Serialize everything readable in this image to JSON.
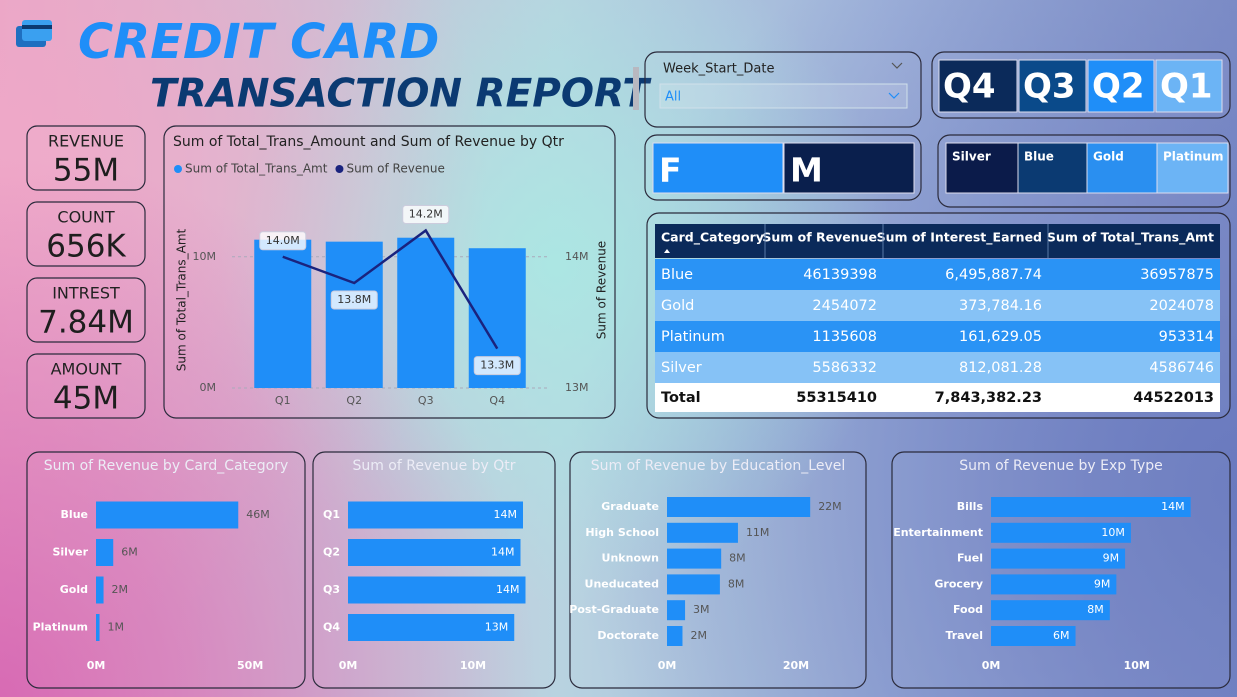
{
  "header": {
    "title": "CREDIT CARD",
    "subtitle": "TRANSACTION REPORT"
  },
  "kpis": [
    {
      "label": "REVENUE",
      "value": "55M"
    },
    {
      "label": "COUNT",
      "value": "656K"
    },
    {
      "label": "INTREST",
      "value": "7.84M"
    },
    {
      "label": "AMOUNT",
      "value": "45M"
    }
  ],
  "filters": {
    "week": {
      "label": "Week_Start_Date",
      "value": "All"
    },
    "quarters": [
      "Q4",
      "Q3",
      "Q2",
      "Q1"
    ],
    "gender": [
      "F",
      "M"
    ],
    "card_category": [
      "Silver",
      "Blue",
      "Gold",
      "Platinum"
    ]
  },
  "table": {
    "columns": [
      "Card_Category",
      "Sum of Revenue",
      "Sum of Interest_Earned",
      "Sum of Total_Trans_Amt"
    ],
    "rows": [
      [
        "Blue",
        "46139398",
        "6,495,887.74",
        "36957875"
      ],
      [
        "Gold",
        "2454072",
        "373,784.16",
        "2024078"
      ],
      [
        "Platinum",
        "1135608",
        "161,629.05",
        "953314"
      ],
      [
        "Silver",
        "5586332",
        "812,081.28",
        "4586746"
      ]
    ],
    "total": [
      "Total",
      "55315410",
      "7,843,382.23",
      "44522013"
    ]
  },
  "chart_data": [
    {
      "type": "combo",
      "title": "Sum of Total_Trans_Amount and Sum of Revenue by Qtr",
      "categories": [
        "Q1",
        "Q2",
        "Q3",
        "Q4"
      ],
      "series": [
        {
          "name": "Sum of Total_Trans_Amt",
          "color": "#1f8ef8",
          "values": [
            11.3,
            11.15,
            11.45,
            10.65
          ]
        },
        {
          "name": "Sum of Revenue",
          "color": "#1a237e",
          "axis": "y2",
          "values": [
            14.0,
            13.8,
            14.2,
            13.3
          ],
          "value_labels": [
            "14.0M",
            "13.8M",
            "14.2M",
            "13.3M"
          ]
        }
      ],
      "y_label": "Sum of Total_Trans_Amt",
      "y2_label": "Sum of Revenue",
      "ylim": [
        0,
        12.8
      ],
      "yticks": [
        {
          "value": 0,
          "label": "0M"
        },
        {
          "value": 10,
          "label": "10M"
        }
      ],
      "y2lim": [
        13,
        14.28
      ],
      "y2ticks": [
        {
          "value": 13,
          "label": "13M"
        },
        {
          "value": 14,
          "label": "14M"
        }
      ],
      "grid": true
    },
    {
      "type": "bar",
      "orientation": "horizontal",
      "title": "Sum of Revenue by Card_Category",
      "color": "#1f8ef8",
      "categories": [
        "Blue",
        "Silver",
        "Gold",
        "Platinum"
      ],
      "values": [
        46.14,
        5.59,
        2.45,
        1.14
      ],
      "value_labels": [
        "46M",
        "6M",
        "2M",
        "1M"
      ],
      "xlim": [
        0,
        60
      ],
      "xticks": [
        {
          "value": 0,
          "label": "0M"
        },
        {
          "value": 50,
          "label": "50M"
        }
      ]
    },
    {
      "type": "bar",
      "orientation": "horizontal",
      "title": "Sum of Revenue by Qtr",
      "color": "#1f8ef8",
      "categories": [
        "Q1",
        "Q2",
        "Q3",
        "Q4"
      ],
      "values": [
        14.0,
        13.8,
        14.2,
        13.3
      ],
      "value_labels": [
        "14M",
        "14M",
        "14M",
        "13M"
      ],
      "xlim": [
        0,
        14.6
      ],
      "xticks": [
        {
          "value": 0,
          "label": "0M"
        },
        {
          "value": 10,
          "label": "10M"
        }
      ]
    },
    {
      "type": "bar",
      "orientation": "horizontal",
      "title": "Sum of Revenue by Education_Level",
      "color": "#1f8ef8",
      "categories": [
        "Graduate",
        "High School",
        "Unknown",
        "Uneducated",
        "Post-Graduate",
        "Doctorate"
      ],
      "values": [
        22.2,
        11.0,
        8.4,
        8.2,
        2.8,
        2.4
      ],
      "value_labels": [
        "22M",
        "11M",
        "8M",
        "8M",
        "3M",
        "2M"
      ],
      "xlim": [
        0,
        30
      ],
      "xticks": [
        {
          "value": 0,
          "label": "0M"
        },
        {
          "value": 20,
          "label": "20M"
        }
      ]
    },
    {
      "type": "bar",
      "orientation": "horizontal",
      "title": "Sum of Revenue by Exp Type",
      "color": "#1f8ef8",
      "categories": [
        "Bills",
        "Entertainment",
        "Fuel",
        "Grocery",
        "Food",
        "Travel"
      ],
      "values": [
        13.7,
        9.6,
        9.2,
        8.6,
        8.15,
        5.8
      ],
      "value_labels": [
        "14M",
        "10M",
        "9M",
        "9M",
        "8M",
        "6M"
      ],
      "xlim": [
        0,
        15.3
      ],
      "xticks": [
        {
          "value": 0,
          "label": "0M"
        },
        {
          "value": 10,
          "label": "10M"
        }
      ]
    }
  ]
}
